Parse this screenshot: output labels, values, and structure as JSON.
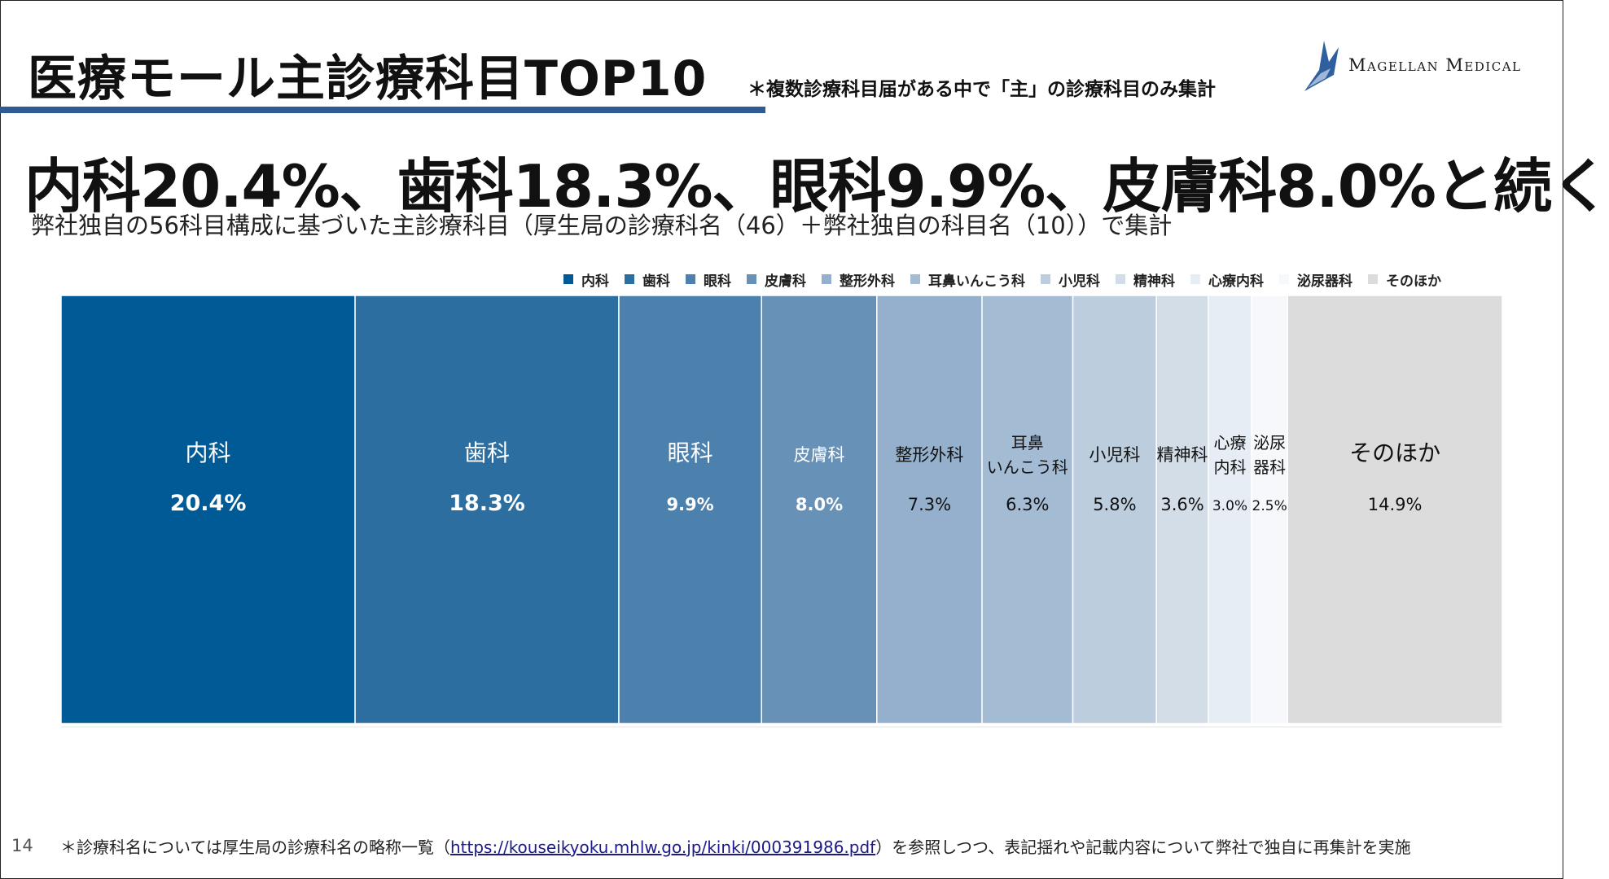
{
  "title": "医療モール主診療科目TOP10",
  "note_top": "＊複数診療科目届がある中で「主」の診療科目のみ集計",
  "logo": {
    "text": "Magellan Medical",
    "icon": "magellan-sail-logo-icon"
  },
  "headline": "内科20.4%、歯科18.3%、眼科9.9%、皮膚科8.0%と続く",
  "subhead": "弊社独自の56科目構成に基づいた主診療科目（厚生局の診療科名（46）＋弊社独自の科目名（10））で集計",
  "footer": {
    "page_number": "14",
    "note_prefix": "＊診療科名については厚生局の診療科名の略称一覧（",
    "link_text": "https://kouseikyoku.mhlw.go.jp/kinki/000391986.pdf",
    "note_suffix": "）を参照しつつ、表記揺れや記載内容について弊社で独自に再集計を実施"
  },
  "legend": [
    {
      "label": "内科",
      "color": "#005a96"
    },
    {
      "label": "歯科",
      "color": "#2d6ea1"
    },
    {
      "label": "眼科",
      "color": "#4c80ad"
    },
    {
      "label": "皮膚科",
      "color": "#6891b8"
    },
    {
      "label": "整形外科",
      "color": "#94b0cd"
    },
    {
      "label": "耳鼻いんこう科",
      "color": "#a4bbd4"
    },
    {
      "label": "小児科",
      "color": "#bccede"
    },
    {
      "label": "精神科",
      "color": "#d3dde8"
    },
    {
      "label": "心療内科",
      "color": "#e6edf4"
    },
    {
      "label": "泌尿器科",
      "color": "#f6f8fb"
    },
    {
      "label": "そのほか",
      "color": "#dcdcdc"
    }
  ],
  "chart_data": {
    "type": "bar",
    "subtype": "100% stacked horizontal bar",
    "title": "医療モール主診療科目TOP10",
    "unit": "%",
    "legend_position": "top-right",
    "categories": [
      "内科",
      "歯科",
      "眼科",
      "皮膚科",
      "整形外科",
      "耳鼻いんこう科",
      "小児科",
      "精神科",
      "心療内科",
      "泌尿器科",
      "そのほか"
    ],
    "segment_labels": [
      [
        "内科"
      ],
      [
        "歯科"
      ],
      [
        "眼科"
      ],
      [
        "皮膚科"
      ],
      [
        "整形外科"
      ],
      [
        "耳鼻",
        "いんこう科"
      ],
      [
        "小児科"
      ],
      [
        "精神科"
      ],
      [
        "心療",
        "内科"
      ],
      [
        "泌尿",
        "器科"
      ],
      [
        "そのほか"
      ]
    ],
    "value_labels": [
      "20.4%",
      "18.3%",
      "9.9%",
      "8.0%",
      "7.3%",
      "6.3%",
      "5.8%",
      "3.6%",
      "3.0%",
      "2.5%",
      "14.9%"
    ],
    "values": [
      20.4,
      18.3,
      9.9,
      8.0,
      7.3,
      6.3,
      5.8,
      3.6,
      3.0,
      2.5,
      14.9
    ],
    "colors": [
      "#005a96",
      "#2d6ea1",
      "#4c80ad",
      "#6891b8",
      "#94b0cd",
      "#a4bbd4",
      "#bccede",
      "#d3dde8",
      "#e6edf4",
      "#f6f8fb",
      "#dcdcdc"
    ],
    "text_colors": [
      "#ffffff",
      "#ffffff",
      "#ffffff",
      "#ffffff",
      "#111111",
      "#111111",
      "#111111",
      "#111111",
      "#111111",
      "#111111",
      "#111111"
    ],
    "xlim": [
      0,
      100
    ]
  }
}
